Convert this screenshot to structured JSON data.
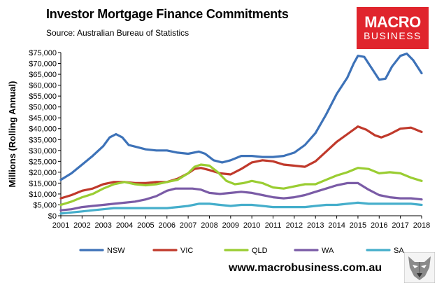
{
  "header": {
    "title": "Investor Mortgage Finance Commitments",
    "subtitle": "Source: Australian Bureau of Statistics"
  },
  "logo": {
    "line1": "MACRO",
    "line2": "BUSINESS",
    "background": "#e0252d"
  },
  "footer": {
    "website": "www.macrobusiness.com.au",
    "mascot_icon": "wolf-icon"
  },
  "chart_data": {
    "type": "line",
    "title": "Investor Mortgage Finance Commitments",
    "subtitle": "Source: Australian Bureau of Statistics",
    "xlabel": "",
    "ylabel": "Millions (Rolling Annual)",
    "xlim": [
      2001,
      2018
    ],
    "ylim": [
      0,
      75000
    ],
    "x_ticks": [
      "2001",
      "2002",
      "2003",
      "2004",
      "2005",
      "2006",
      "2007",
      "2008",
      "2009",
      "2010",
      "2011",
      "2012",
      "2013",
      "2014",
      "2015",
      "2016",
      "2017",
      "2018"
    ],
    "y_ticks": [
      "$0",
      "$5,000",
      "$10,000",
      "$15,000",
      "$20,000",
      "$25,000",
      "$30,000",
      "$35,000",
      "$40,000",
      "$45,000",
      "$50,000",
      "$55,000",
      "$60,000",
      "$65,000",
      "$70,000",
      "$75,000"
    ],
    "grid": false,
    "legend_position": "bottom",
    "series": [
      {
        "name": "NSW",
        "color": "#3d72b8",
        "x": [
          2001,
          2001.5,
          2002,
          2002.5,
          2003,
          2003.3,
          2003.6,
          2003.9,
          2004.2,
          2004.6,
          2005,
          2005.5,
          2006,
          2006.5,
          2007,
          2007.5,
          2007.8,
          2008.2,
          2008.6,
          2009,
          2009.5,
          2010,
          2010.5,
          2011,
          2011.5,
          2012,
          2012.5,
          2013,
          2013.5,
          2014,
          2014.5,
          2014.8,
          2015,
          2015.3,
          2015.7,
          2016,
          2016.3,
          2016.6,
          2017,
          2017.3,
          2017.6,
          2018
        ],
        "y": [
          16500,
          19500,
          23500,
          27500,
          32000,
          36000,
          37500,
          36000,
          32500,
          31500,
          30500,
          30000,
          30000,
          29000,
          28500,
          29500,
          28500,
          25500,
          24500,
          25500,
          27500,
          27500,
          27000,
          27000,
          27500,
          29000,
          32500,
          38000,
          46500,
          56000,
          63500,
          70000,
          73500,
          73000,
          67000,
          62500,
          63000,
          68500,
          73500,
          74500,
          71500,
          65500
        ]
      },
      {
        "name": "VIC",
        "color": "#c0392b",
        "x": [
          2001,
          2001.5,
          2002,
          2002.5,
          2003,
          2003.5,
          2004,
          2004.5,
          2005,
          2005.5,
          2006,
          2006.5,
          2007,
          2007.3,
          2007.6,
          2008,
          2008.5,
          2009,
          2009.5,
          2010,
          2010.5,
          2011,
          2011.5,
          2012,
          2012.5,
          2013,
          2013.5,
          2014,
          2014.5,
          2015,
          2015.4,
          2015.8,
          2016.1,
          2016.5,
          2017,
          2017.5,
          2018
        ],
        "y": [
          8000,
          9500,
          11500,
          12500,
          14500,
          15500,
          15500,
          15000,
          15000,
          15500,
          15500,
          17000,
          19500,
          21500,
          22000,
          21000,
          19500,
          19000,
          21500,
          24500,
          25500,
          25000,
          23500,
          23000,
          22500,
          25000,
          29500,
          34000,
          37500,
          41000,
          39500,
          37000,
          36000,
          37500,
          40000,
          40500,
          38500
        ]
      },
      {
        "name": "QLD",
        "color": "#9acd32",
        "x": [
          2001,
          2001.5,
          2002,
          2002.5,
          2003,
          2003.5,
          2004,
          2004.5,
          2005,
          2005.5,
          2006,
          2006.5,
          2007,
          2007.3,
          2007.6,
          2008,
          2008.4,
          2008.8,
          2009.2,
          2009.6,
          2010,
          2010.5,
          2011,
          2011.5,
          2012,
          2012.5,
          2013,
          2013.5,
          2014,
          2014.5,
          2015,
          2015.5,
          2016,
          2016.5,
          2017,
          2017.5,
          2018
        ],
        "y": [
          5000,
          6500,
          8500,
          10000,
          12500,
          14500,
          15500,
          14500,
          14000,
          14500,
          15500,
          16500,
          19500,
          22500,
          23500,
          23000,
          20000,
          16000,
          14500,
          15000,
          16000,
          15000,
          13000,
          12500,
          13500,
          14500,
          14500,
          16500,
          18500,
          20000,
          22000,
          21500,
          19500,
          20000,
          19500,
          17500,
          16000
        ]
      },
      {
        "name": "WA",
        "color": "#7a5ba6",
        "x": [
          2001,
          2001.5,
          2002,
          2002.5,
          2003,
          2003.5,
          2004,
          2004.5,
          2005,
          2005.5,
          2006,
          2006.4,
          2006.8,
          2007.2,
          2007.6,
          2008,
          2008.5,
          2009,
          2009.5,
          2010,
          2010.5,
          2011,
          2011.5,
          2012,
          2012.5,
          2013,
          2013.5,
          2014,
          2014.5,
          2015,
          2015.5,
          2016,
          2016.5,
          2017,
          2017.5,
          2018
        ],
        "y": [
          2500,
          3000,
          4000,
          4500,
          5000,
          5500,
          6000,
          6500,
          7500,
          9000,
          11500,
          12500,
          12500,
          12500,
          12000,
          10500,
          10000,
          10500,
          11000,
          10500,
          9500,
          8500,
          8000,
          8500,
          9500,
          11000,
          12500,
          14000,
          15000,
          15000,
          12000,
          9500,
          8500,
          8000,
          8000,
          7500
        ]
      },
      {
        "name": "SA",
        "color": "#45aecb",
        "x": [
          2001,
          2001.5,
          2002,
          2002.5,
          2003,
          2003.5,
          2004,
          2004.5,
          2005,
          2005.5,
          2006,
          2006.5,
          2007,
          2007.5,
          2008,
          2008.5,
          2009,
          2009.5,
          2010,
          2010.5,
          2011,
          2011.5,
          2012,
          2012.5,
          2013,
          2013.5,
          2014,
          2014.5,
          2015,
          2015.5,
          2016,
          2016.5,
          2017,
          2017.5,
          2018
        ],
        "y": [
          1000,
          1500,
          2000,
          2500,
          3000,
          3500,
          3500,
          3500,
          3500,
          3500,
          3500,
          4000,
          4500,
          5500,
          5500,
          5000,
          4500,
          5000,
          5000,
          4500,
          4000,
          4000,
          4000,
          4000,
          4500,
          5000,
          5000,
          5500,
          6000,
          5500,
          5500,
          5500,
          5500,
          5500,
          5000
        ]
      }
    ]
  }
}
